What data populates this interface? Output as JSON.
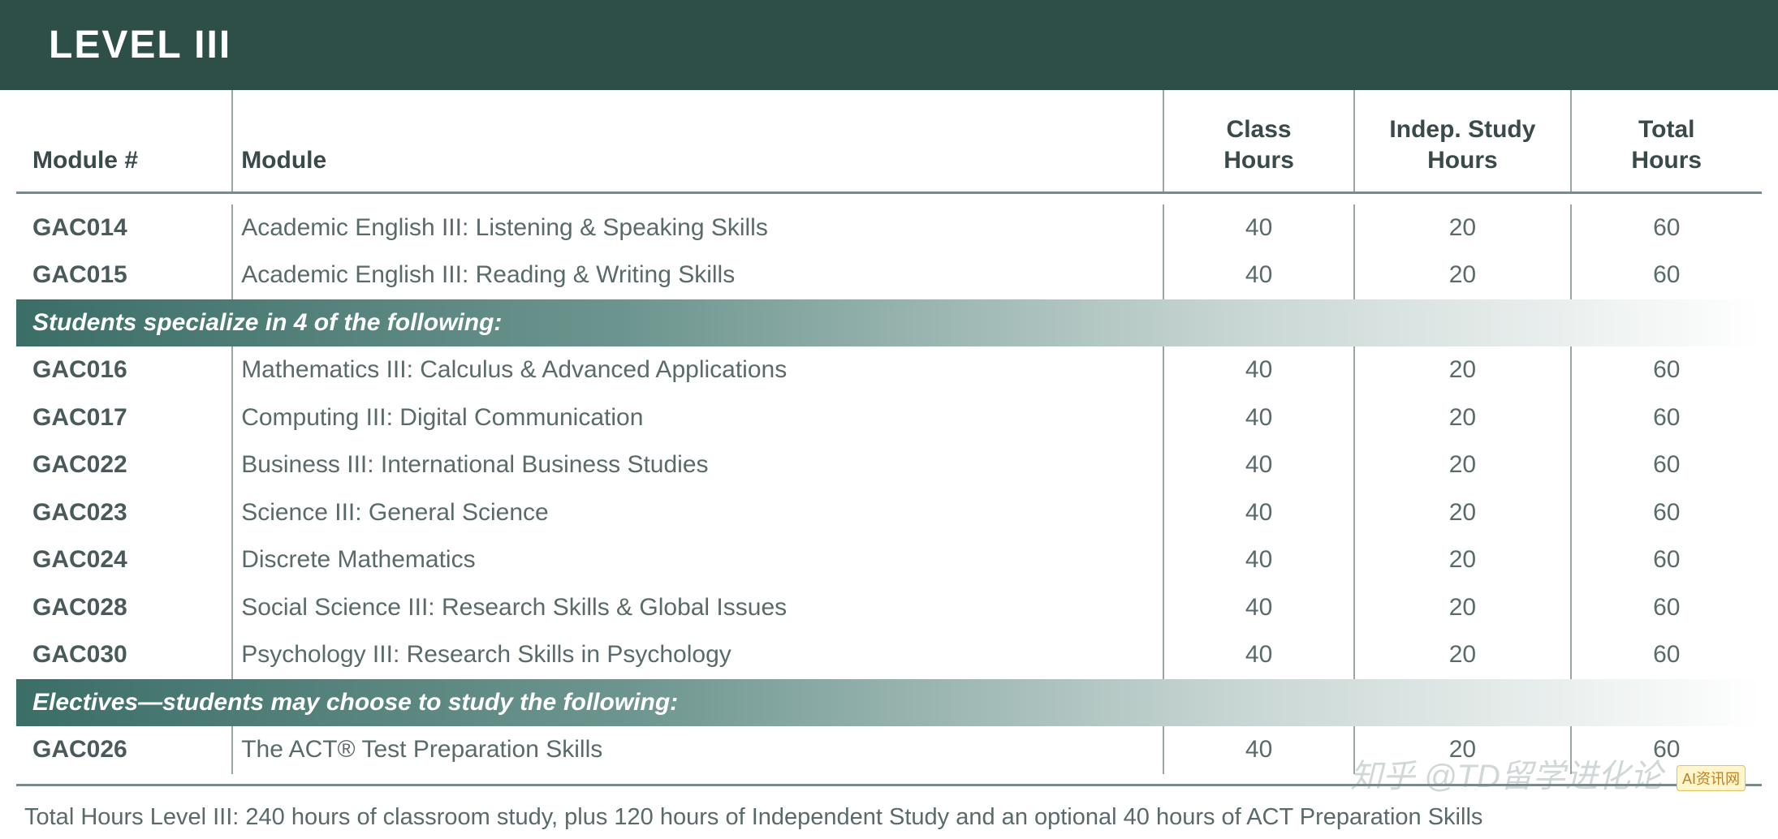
{
  "header": {
    "title": "LEVEL III"
  },
  "columns": {
    "modnum": "Module #",
    "modname": "Module",
    "class_hours": "Class Hours",
    "indep_hours": "Indep. Study Hours",
    "total_hours": "Total Hours"
  },
  "core_rows": [
    {
      "code": "GAC014",
      "name": "Academic English III: Listening & Speaking Skills",
      "class": "40",
      "indep": "20",
      "total": "60"
    },
    {
      "code": "GAC015",
      "name": "Academic English III: Reading & Writing Skills",
      "class": "40",
      "indep": "20",
      "total": "60"
    }
  ],
  "section1_label": "Students specialize in 4 of the following:",
  "spec_rows": [
    {
      "code": "GAC016",
      "name": "Mathematics III: Calculus & Advanced Applications",
      "class": "40",
      "indep": "20",
      "total": "60"
    },
    {
      "code": "GAC017",
      "name": "Computing III: Digital Communication",
      "class": "40",
      "indep": "20",
      "total": "60"
    },
    {
      "code": "GAC022",
      "name": "Business III: International Business Studies",
      "class": "40",
      "indep": "20",
      "total": "60"
    },
    {
      "code": "GAC023",
      "name": "Science III: General Science",
      "class": "40",
      "indep": "20",
      "total": "60"
    },
    {
      "code": "GAC024",
      "name": "Discrete Mathematics",
      "class": "40",
      "indep": "20",
      "total": "60"
    },
    {
      "code": "GAC028",
      "name": "Social Science III: Research Skills & Global Issues",
      "class": "40",
      "indep": "20",
      "total": "60"
    },
    {
      "code": "GAC030",
      "name": "Psychology III: Research Skills in Psychology",
      "class": "40",
      "indep": "20",
      "total": "60"
    }
  ],
  "section2_label": "Electives—students may choose to study the following:",
  "elective_rows": [
    {
      "code": "GAC026",
      "name": "The ACT® Test Preparation Skills",
      "class": "40",
      "indep": "20",
      "total": "60"
    }
  ],
  "footer_note": "Total Hours Level III: 240 hours of classroom study, plus 120 hours of Independent Study and an optional 40 hours of ACT Preparation Skills",
  "watermark": {
    "text": "知乎 @TD留学进化论",
    "badge": "AI资讯网"
  },
  "style": {
    "header_bg": "#2d4f47",
    "header_fg": "#ffffff",
    "band_gradient_from": "#3b6e67",
    "band_gradient_to": "#ffffff",
    "rule_color": "#7a8a8a",
    "vsep_color": "#9aa5a5",
    "text_color": "#4a5a5a",
    "muted_text": "#5a6a6a",
    "font_size_body": 30,
    "font_size_header": 48
  }
}
